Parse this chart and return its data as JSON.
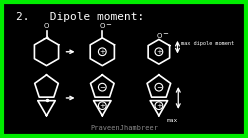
{
  "bg_color": "#000000",
  "draw_color": "#ffffff",
  "green_border_color": "#00ee00",
  "title": "2.   Dipole moment:",
  "title_fontsize": 8,
  "subtitle": "PraveenJhambreer",
  "subtitle_fontsize": 5,
  "max_dipole_text": "max dipole moment",
  "max_text": "max"
}
